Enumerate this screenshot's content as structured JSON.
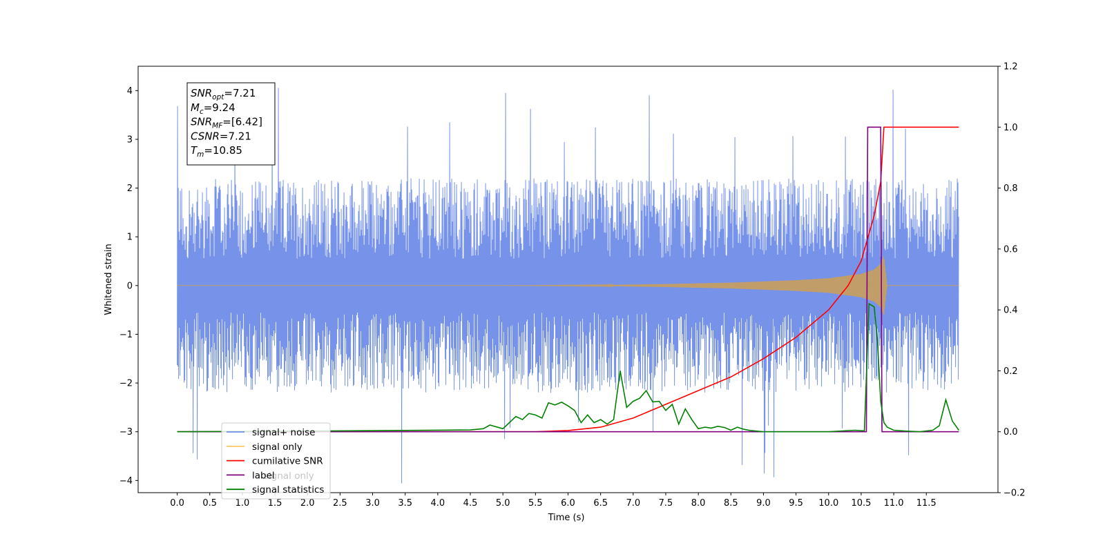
{
  "chart_data": {
    "type": "line",
    "xlabel": "Time (s)",
    "ylabel": "Whitened strain",
    "xlim": [
      -0.6,
      12.6
    ],
    "ylim": [
      -4.25,
      4.5
    ],
    "ylim_right": [
      -0.2,
      1.2
    ],
    "x_ticks": [
      0.0,
      0.5,
      1.0,
      1.5,
      2.0,
      2.5,
      3.0,
      3.5,
      4.0,
      4.5,
      5.0,
      5.5,
      6.0,
      6.5,
      7.0,
      7.5,
      8.0,
      8.5,
      9.0,
      9.5,
      10.0,
      10.5,
      11.0,
      11.5
    ],
    "x_tick_labels": [
      "0.0",
      "0.5",
      "1.0",
      "1.5",
      "2.0",
      "2.5",
      "3.0",
      "3.5",
      "4.0",
      "4.5",
      "5.0",
      "5.5",
      "6.0",
      "6.5",
      "7.0",
      "7.5",
      "8.0",
      "8.5",
      "9.0",
      "9.5",
      "10.0",
      "10.5",
      "11.0",
      "11.5"
    ],
    "y_ticks": [
      -4,
      -3,
      -2,
      -1,
      0,
      1,
      2,
      3,
      4
    ],
    "y_tick_labels": [
      "−4",
      "−3",
      "−2",
      "−1",
      "0",
      "1",
      "2",
      "3",
      "4"
    ],
    "y2_ticks": [
      -0.2,
      0.0,
      0.2,
      0.4,
      0.6,
      0.8,
      1.0,
      1.2
    ],
    "y2_tick_labels": [
      "−0.2",
      "0.0",
      "0.2",
      "0.4",
      "0.6",
      "0.8",
      "1.0",
      "1.2"
    ],
    "grid": false,
    "legend_position": "bottom-left",
    "info_box": {
      "lines": [
        {
          "main": "SNR",
          "sub": "opt",
          "rest": "=7.21"
        },
        {
          "main": "M",
          "sub": "c",
          "rest": "=9.24"
        },
        {
          "main": "SNR",
          "sub": "MF",
          "rest": "=[6.42]"
        },
        {
          "main": "CSNR",
          "sub": "",
          "rest": "=7.21"
        },
        {
          "main": "T",
          "sub": "m",
          "rest": "=10.85"
        }
      ]
    },
    "series": [
      {
        "name": "signal+ noise",
        "axis": "left",
        "color": "#4169e1",
        "description": "whitened noise plus signal, dense trace spanning 0–12 s with amplitude roughly ±2.5 and spikes to ±4",
        "x_range": [
          0.0,
          12.0
        ],
        "typical_amplitude": 2.2,
        "max_spike": 4.1
      },
      {
        "name": "signal only",
        "axis": "left",
        "color": "#ffa500",
        "description": "chirp waveform whose envelope grows until merger",
        "envelope": {
          "x": [
            0.0,
            5.0,
            6.5,
            7.5,
            8.5,
            9.5,
            10.0,
            10.5,
            10.7,
            10.8,
            10.85,
            10.9,
            12.0
          ],
          "y": [
            0.0,
            0.0,
            0.01,
            0.03,
            0.06,
            0.11,
            0.15,
            0.24,
            0.33,
            0.45,
            0.62,
            0.0,
            0.0
          ]
        }
      },
      {
        "name": "cumilative SNR",
        "axis": "right",
        "color": "#ff0000",
        "x": [
          0.0,
          5.5,
          6.0,
          6.5,
          7.0,
          7.5,
          8.0,
          8.5,
          9.0,
          9.5,
          10.0,
          10.3,
          10.5,
          10.7,
          10.8,
          10.85,
          11.0,
          11.5,
          12.0
        ],
        "y": [
          0.0,
          0.0,
          0.004,
          0.015,
          0.045,
          0.09,
          0.135,
          0.18,
          0.24,
          0.31,
          0.4,
          0.48,
          0.56,
          0.71,
          0.82,
          1.0,
          1.0,
          1.0,
          1.0
        ]
      },
      {
        "name": "label",
        "axis": "right",
        "color": "#800080",
        "x": [
          0.0,
          10.58,
          10.6,
          10.8,
          10.82,
          10.88,
          12.0
        ],
        "y": [
          0.0,
          0.0,
          1.0,
          1.0,
          0.0,
          0.0,
          0.0
        ]
      },
      {
        "name": "signal statistics",
        "axis": "right",
        "color": "#008000",
        "x": [
          0.0,
          2.5,
          4.5,
          4.7,
          4.8,
          5.0,
          5.1,
          5.2,
          5.3,
          5.4,
          5.5,
          5.6,
          5.7,
          5.8,
          5.9,
          6.0,
          6.1,
          6.2,
          6.3,
          6.4,
          6.5,
          6.6,
          6.7,
          6.8,
          6.9,
          7.0,
          7.1,
          7.2,
          7.3,
          7.4,
          7.5,
          7.6,
          7.7,
          7.8,
          7.9,
          8.0,
          8.1,
          8.2,
          8.3,
          8.4,
          8.5,
          8.6,
          8.7,
          8.8,
          9.0,
          9.5,
          10.0,
          10.4,
          10.55,
          10.62,
          10.7,
          10.75,
          10.8,
          10.85,
          10.9,
          11.0,
          11.2,
          11.4,
          11.6,
          11.7,
          11.8,
          11.9,
          12.0
        ],
        "y": [
          0.0,
          0.003,
          0.006,
          0.01,
          0.022,
          0.01,
          0.03,
          0.05,
          0.04,
          0.06,
          0.055,
          0.045,
          0.095,
          0.088,
          0.097,
          0.085,
          0.07,
          0.03,
          0.055,
          0.03,
          0.04,
          0.025,
          0.04,
          0.2,
          0.08,
          0.1,
          0.11,
          0.135,
          0.098,
          0.1,
          0.07,
          0.09,
          0.025,
          0.075,
          0.04,
          0.01,
          0.015,
          0.012,
          0.018,
          0.014,
          0.005,
          0.015,
          0.008,
          0.004,
          0.0,
          0.0,
          0.0,
          0.005,
          0.003,
          0.42,
          0.41,
          0.3,
          0.1,
          0.03,
          0.015,
          0.005,
          0.002,
          0.0,
          0.005,
          0.02,
          0.105,
          0.035,
          0.005
        ]
      }
    ]
  },
  "legend": {
    "items": [
      {
        "label": "signal+ noise",
        "color": "#6d8ee8"
      },
      {
        "label": "signal only",
        "color": "#ffc866"
      },
      {
        "label": "cumilative SNR",
        "color": "#ff0000"
      },
      {
        "label": "label",
        "color": "#800080"
      },
      {
        "label": "signal statistics",
        "color": "#008000"
      }
    ]
  },
  "hidden_label_fragment": "signal only"
}
